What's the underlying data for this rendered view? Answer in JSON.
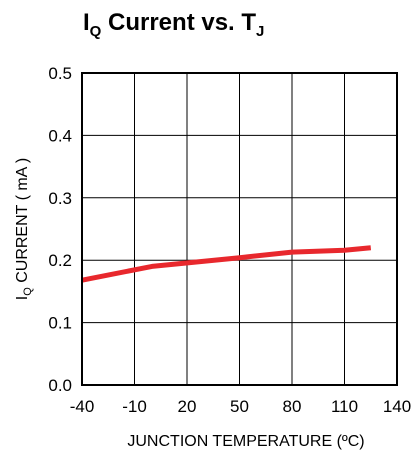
{
  "chart_data": {
    "type": "line",
    "title": {
      "main": "I",
      "main_sub": "Q",
      "middle": " Current vs. T",
      "end_sub": "J"
    },
    "xlabel": "JUNCTION TEMPERATURE (ºC)",
    "ylabel": {
      "main": "I",
      "sub": "Q",
      "rest": " CURRENT  ( mA )"
    },
    "x_ticks": [
      "-40",
      "-10",
      "20",
      "50",
      "80",
      "110",
      "140"
    ],
    "y_ticks": [
      "0.0",
      "0.1",
      "0.2",
      "0.3",
      "0.4",
      "0.5"
    ],
    "xlim": [
      -40,
      140
    ],
    "ylim": [
      0,
      0.5
    ],
    "grid": true,
    "series": [
      {
        "color": "#e8282d",
        "x": [
          -40,
          0,
          50,
          80,
          110,
          125
        ],
        "y": [
          0.168,
          0.19,
          0.204,
          0.213,
          0.216,
          0.22
        ]
      }
    ]
  }
}
